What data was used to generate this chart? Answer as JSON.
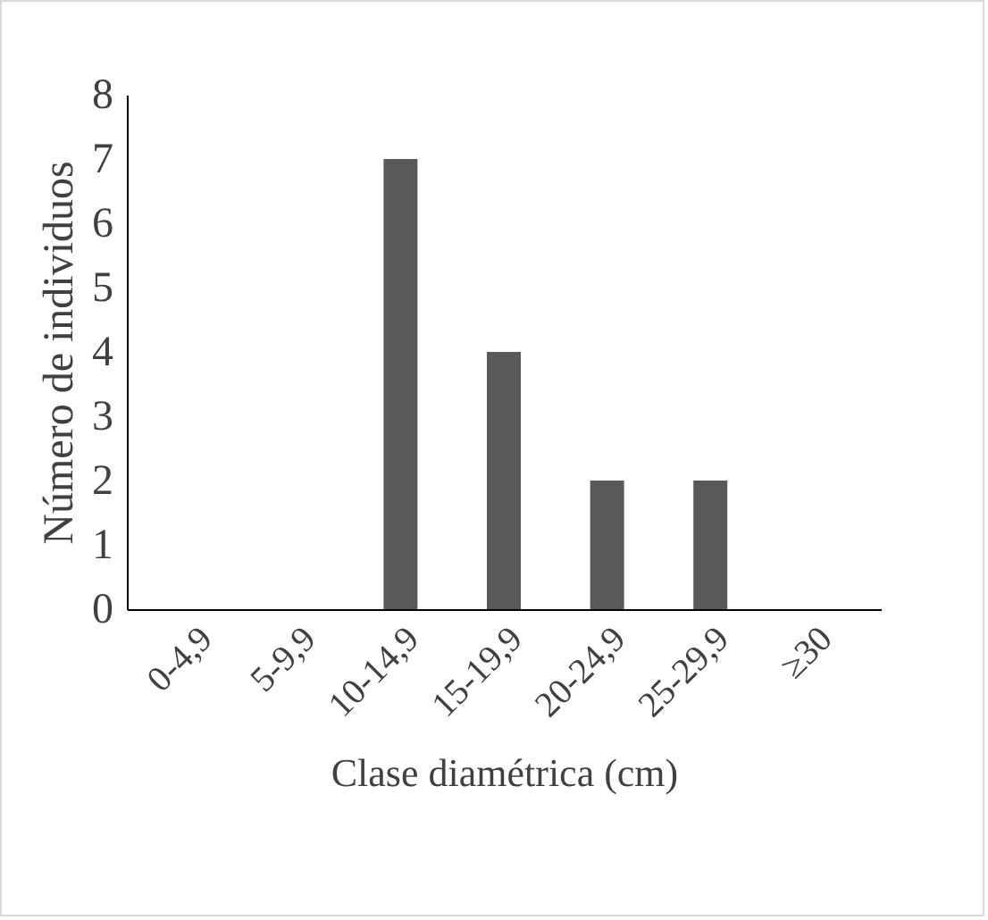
{
  "chart_data": {
    "type": "bar",
    "xlabel": "Clase diamétrica (cm)",
    "ylabel": "Número de individuos",
    "categories": [
      "0-4,9",
      "5-9,9",
      "10-14,9",
      "15-19,9",
      "20-24,9",
      "25-29,9",
      "≥30"
    ],
    "values": [
      0,
      0,
      7,
      4,
      2,
      2,
      0
    ],
    "color": "#595959",
    "ylim": [
      0,
      8
    ],
    "yticks": [
      0,
      1,
      2,
      3,
      4,
      5,
      6,
      7,
      8
    ],
    "grid": false
  }
}
